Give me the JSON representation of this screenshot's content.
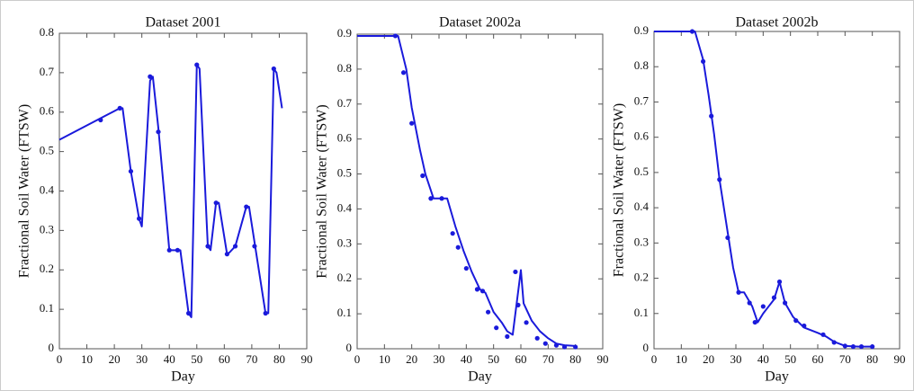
{
  "chart_data": [
    {
      "type": "line",
      "title": "Dataset 2001",
      "xlabel": "Day",
      "ylabel": "Fractional Soil Water (FTSW)",
      "xlim": [
        0,
        90
      ],
      "xticks": [
        0,
        10,
        20,
        30,
        40,
        50,
        60,
        70,
        80,
        90
      ],
      "ylim": [
        0,
        0.8
      ],
      "yticks": [
        0,
        0.1,
        0.2,
        0.3,
        0.4,
        0.5,
        0.6,
        0.7,
        0.8
      ],
      "series": [
        {
          "style": "line",
          "color": "#1a1adb",
          "x": [
            0,
            22,
            23,
            26,
            29,
            30,
            33,
            34,
            36,
            40,
            43,
            44,
            47,
            48,
            50,
            51,
            54,
            55,
            57,
            58,
            61,
            62,
            64,
            68,
            69,
            71,
            75,
            76,
            78,
            79,
            81
          ],
          "values": [
            0.53,
            0.61,
            0.61,
            0.45,
            0.33,
            0.31,
            0.68,
            0.69,
            0.56,
            0.25,
            0.25,
            0.25,
            0.09,
            0.08,
            0.72,
            0.71,
            0.26,
            0.25,
            0.37,
            0.37,
            0.24,
            0.245,
            0.26,
            0.36,
            0.36,
            0.27,
            0.09,
            0.09,
            0.71,
            0.7,
            0.61
          ]
        },
        {
          "style": "markers",
          "color": "#1a1adb",
          "x": [
            15,
            22,
            26,
            29,
            33,
            36,
            40,
            43,
            47,
            50,
            54,
            57,
            61,
            64,
            68,
            71,
            75,
            78
          ],
          "values": [
            0.58,
            0.61,
            0.45,
            0.33,
            0.69,
            0.55,
            0.25,
            0.25,
            0.09,
            0.72,
            0.26,
            0.37,
            0.24,
            0.26,
            0.36,
            0.26,
            0.09,
            0.71
          ]
        }
      ]
    },
    {
      "type": "line",
      "title": "Dataset 2002a",
      "xlabel": "Day",
      "ylabel": "Fractional Soil Water (FTSW)",
      "xlim": [
        0,
        90
      ],
      "xticks": [
        0,
        10,
        20,
        30,
        40,
        50,
        60,
        70,
        80,
        90
      ],
      "ylim": [
        0,
        0.9
      ],
      "yticks": [
        0,
        0.1,
        0.2,
        0.3,
        0.4,
        0.5,
        0.6,
        0.7,
        0.8,
        0.9
      ],
      "series": [
        {
          "style": "line",
          "color": "#1a1adb",
          "x": [
            0,
            15,
            18,
            20,
            23,
            25,
            28,
            33,
            36,
            39,
            42,
            45,
            47,
            50,
            53,
            55,
            57,
            60,
            61,
            64,
            67,
            70,
            73,
            76,
            80
          ],
          "values": [
            0.895,
            0.895,
            0.8,
            0.69,
            0.57,
            0.5,
            0.43,
            0.43,
            0.35,
            0.28,
            0.22,
            0.17,
            0.16,
            0.105,
            0.075,
            0.05,
            0.04,
            0.225,
            0.13,
            0.08,
            0.05,
            0.03,
            0.015,
            0.01,
            0.008
          ]
        },
        {
          "style": "markers",
          "color": "#1a1adb",
          "x": [
            14,
            17,
            20,
            24,
            27,
            31,
            35,
            37,
            40,
            44,
            46,
            48,
            51,
            55,
            58,
            59,
            62,
            66,
            69,
            73,
            76,
            80
          ],
          "values": [
            0.895,
            0.79,
            0.645,
            0.495,
            0.43,
            0.43,
            0.33,
            0.29,
            0.23,
            0.17,
            0.165,
            0.105,
            0.06,
            0.035,
            0.22,
            0.125,
            0.075,
            0.03,
            0.015,
            0.01,
            0.005,
            0.005
          ]
        }
      ]
    },
    {
      "type": "line",
      "title": "Dataset 2002b",
      "xlabel": "Day",
      "ylabel": "Fractional Soil Water (FTSW)",
      "xlim": [
        0,
        90
      ],
      "xticks": [
        0,
        10,
        20,
        30,
        40,
        50,
        60,
        70,
        80,
        90
      ],
      "ylim": [
        0,
        0.9
      ],
      "yticks": [
        0,
        0.1,
        0.2,
        0.3,
        0.4,
        0.5,
        0.6,
        0.7,
        0.8,
        0.9
      ],
      "series": [
        {
          "style": "line",
          "color": "#1a1adb",
          "x": [
            0,
            15,
            18,
            20,
            22,
            24,
            27,
            29,
            31,
            33,
            36,
            38,
            40,
            42,
            44,
            46,
            48,
            51,
            55,
            60,
            63,
            66,
            70,
            75,
            80
          ],
          "values": [
            0.9,
            0.9,
            0.82,
            0.72,
            0.61,
            0.48,
            0.33,
            0.23,
            0.16,
            0.16,
            0.12,
            0.075,
            0.1,
            0.12,
            0.14,
            0.19,
            0.13,
            0.09,
            0.06,
            0.045,
            0.035,
            0.02,
            0.008,
            0.006,
            0.006
          ]
        },
        {
          "style": "markers",
          "color": "#1a1adb",
          "x": [
            14,
            18,
            21,
            24,
            27,
            31,
            35,
            37,
            40,
            44,
            46,
            48,
            52,
            55,
            62,
            66,
            70,
            73,
            76,
            80
          ],
          "values": [
            0.9,
            0.815,
            0.66,
            0.48,
            0.315,
            0.16,
            0.13,
            0.075,
            0.12,
            0.145,
            0.19,
            0.13,
            0.08,
            0.065,
            0.04,
            0.018,
            0.008,
            0.006,
            0.006,
            0.006
          ]
        }
      ]
    }
  ]
}
